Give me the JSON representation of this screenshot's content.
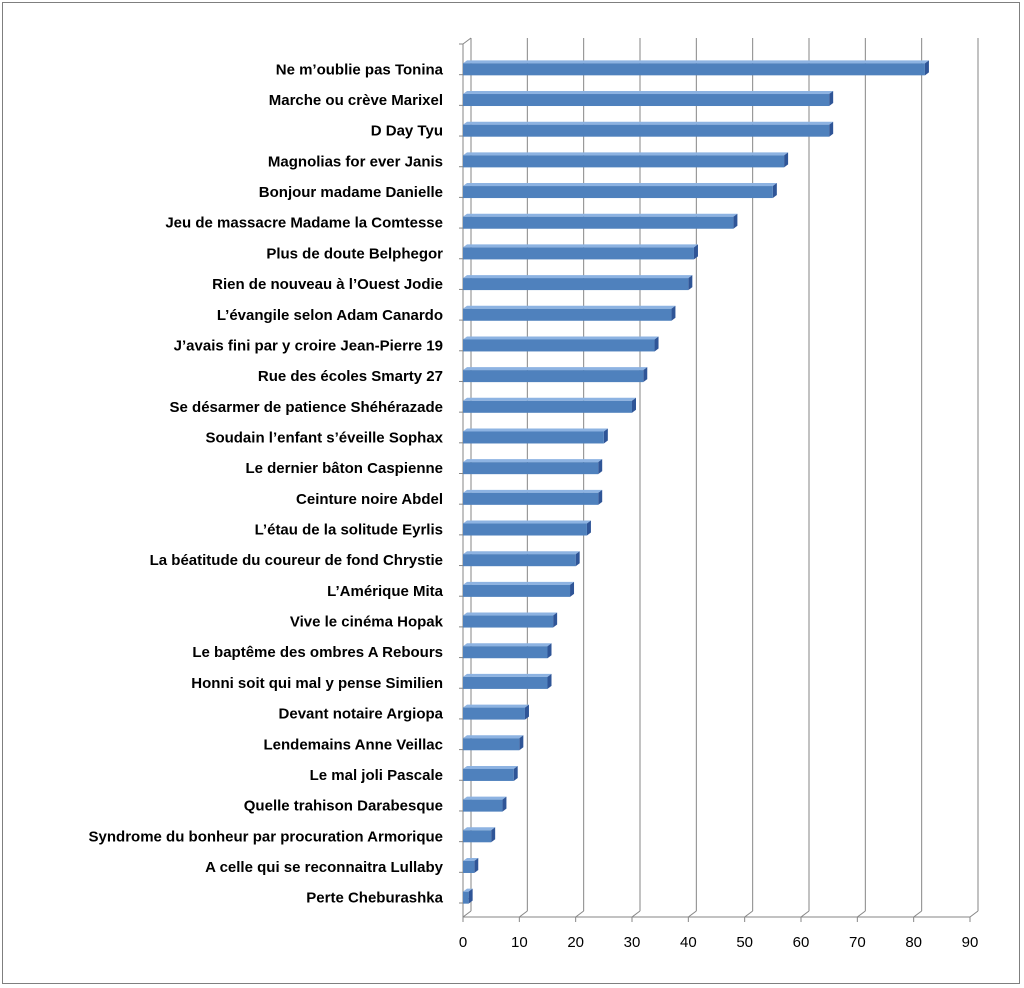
{
  "chart_data": {
    "type": "bar",
    "orientation": "horizontal",
    "style": "3d",
    "categories": [
      "Ne m’oublie pas Tonina",
      "Marche ou crève Marixel",
      "D Day Tyu",
      "Magnolias for ever Janis",
      "Bonjour madame Danielle",
      "Jeu de massacre Madame la Comtesse",
      "Plus de doute Belphegor",
      "Rien de nouveau à l’Ouest Jodie",
      "L’évangile selon Adam Canardo",
      "J’avais fini par y croire Jean-Pierre 19",
      "Rue des écoles Smarty 27",
      "Se désarmer de patience Shéhérazade",
      "Soudain l’enfant s’éveille Sophax",
      "Le dernier bâton Caspienne",
      "Ceinture noire Abdel",
      "L’étau de la solitude Eyrlis",
      "La béatitude du coureur de fond Chrystie",
      "L’Amérique Mita",
      "Vive le cinéma Hopak",
      "Le baptême des ombres A Rebours",
      "Honni soit qui mal y pense Similien",
      "Devant notaire Argiopa",
      "Lendemains Anne Veillac",
      "Le mal joli Pascale",
      "Quelle trahison Darabesque",
      "Syndrome du bonheur par procuration Armorique",
      "A celle qui se reconnaitra Lullaby",
      "Perte Cheburashka"
    ],
    "values": [
      82,
      65,
      65,
      57,
      55,
      48,
      41,
      40,
      37,
      34,
      32,
      30,
      25,
      24,
      24,
      22,
      20,
      19,
      16,
      15,
      15,
      11,
      10,
      9,
      7,
      5,
      2,
      1
    ],
    "xlim": [
      0,
      90
    ],
    "xticks": [
      0,
      10,
      20,
      30,
      40,
      50,
      60,
      70,
      80,
      90
    ],
    "grid": true,
    "title": "",
    "xlabel": "",
    "ylabel": "",
    "colors": {
      "bar_front": "#4f81bd",
      "bar_top": "#8db3e2",
      "bar_side": "#2f5597",
      "grid": "#868686",
      "wall": "#ffffff",
      "axis": "#868686"
    }
  }
}
